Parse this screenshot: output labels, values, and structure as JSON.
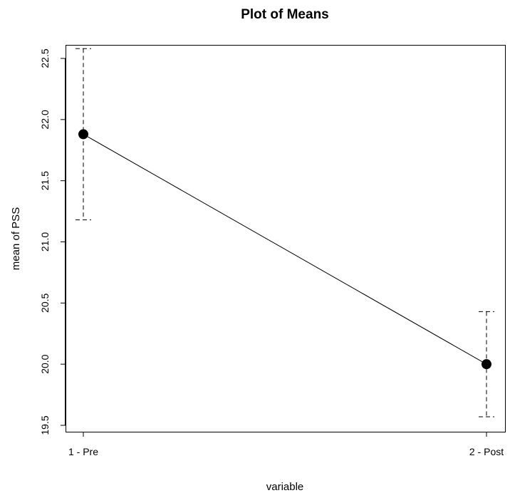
{
  "chart_data": {
    "type": "line",
    "title": "Plot of Means",
    "xlabel": "variable",
    "ylabel": "mean of PSS",
    "categories": [
      "1 - Pre",
      "2 - Post"
    ],
    "values": [
      21.88,
      20.0
    ],
    "error_bars": [
      {
        "lower": 21.18,
        "upper": 22.58
      },
      {
        "lower": 19.57,
        "upper": 20.43
      }
    ],
    "yticks": [
      19.5,
      20.0,
      20.5,
      21.0,
      21.5,
      22.0,
      22.5
    ],
    "ytick_labels": [
      "19.5",
      "20.0",
      "20.5",
      "21.0",
      "21.5",
      "22.0",
      "22.5"
    ],
    "error_bar_style": "dashed",
    "marker": "filled-circle",
    "grid": false,
    "legend": "none"
  }
}
